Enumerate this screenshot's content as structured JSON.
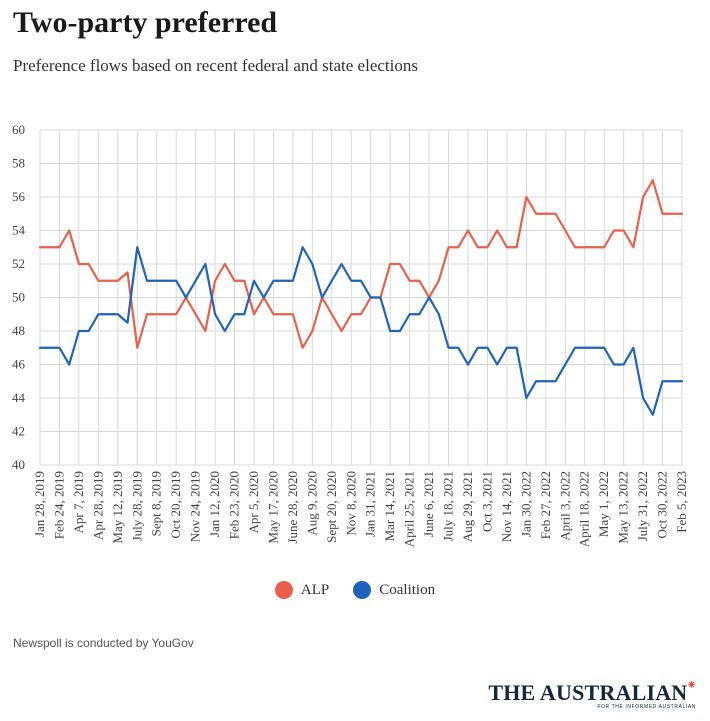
{
  "header": {
    "title": "Two-party preferred",
    "subtitle": "Preference flows based on recent federal and state elections"
  },
  "footnote": "Newspoll is conducted by YouGov",
  "brand": {
    "name": "THE AUSTRALIAN",
    "tagline": "FOR THE INFORMED AUSTRALIAN"
  },
  "chart_data": {
    "type": "line",
    "title": "Two-party preferred",
    "subtitle": "Preference flows based on recent federal and state elections",
    "xlabel": "",
    "ylabel": "",
    "ylim": [
      40,
      60
    ],
    "yticks": [
      40,
      42,
      44,
      46,
      48,
      50,
      52,
      54,
      56,
      58,
      60
    ],
    "grid": true,
    "legend_position": "bottom-center",
    "x_tick_labels": [
      "Jan 28, 2019",
      "Feb 24, 2019",
      "Apr 7, 2019",
      "Apr 28, 2019",
      "May 12, 2019",
      "July 28, 2019",
      "Sept 8, 2019",
      "Oct 20, 2019",
      "Nov 24, 2019",
      "Jan 12, 2020",
      "Feb 23, 2020",
      "Apr 5, 2020",
      "May 17, 2020",
      "June 28, 2020",
      "Aug 9, 2020",
      "Sept 20, 2020",
      "Nov 8, 2020",
      "Jan 31, 2021",
      "Mar 14, 2021",
      "April 25, 2021",
      "June 6, 2021",
      "July 18, 2021",
      "Aug 29, 2021",
      "Oct 3, 2021",
      "Nov 14, 2021",
      "Jan 30, 2022",
      "Feb 27, 2022",
      "April 3, 2022",
      "April 18, 2022",
      "May 1, 2022",
      "May 13, 2022",
      "July 31, 2022",
      "Oct 30, 2022",
      "Feb 5, 2023"
    ],
    "series": [
      {
        "name": "ALP",
        "color": "#e8604c",
        "values": [
          53,
          53,
          53,
          54,
          52,
          52,
          51,
          51,
          51,
          51.5,
          47,
          49,
          49,
          49,
          49,
          50,
          49,
          48,
          51,
          52,
          51,
          51,
          49,
          50,
          49,
          49,
          49,
          47,
          48,
          50,
          49,
          48,
          49,
          49,
          50,
          50,
          52,
          52,
          51,
          51,
          50,
          51,
          53,
          53,
          54,
          53,
          53,
          54,
          53,
          53,
          56,
          55,
          55,
          55,
          54,
          53,
          53,
          53,
          53,
          54,
          54,
          53,
          56,
          57,
          55,
          55,
          55
        ]
      },
      {
        "name": "Coalition",
        "color": "#1f63b8",
        "values": [
          47,
          47,
          47,
          46,
          48,
          48,
          49,
          49,
          49,
          48.5,
          53,
          51,
          51,
          51,
          51,
          50,
          51,
          52,
          49,
          48,
          49,
          49,
          51,
          50,
          51,
          51,
          51,
          53,
          52,
          50,
          51,
          52,
          51,
          51,
          50,
          50,
          48,
          48,
          49,
          49,
          50,
          49,
          47,
          47,
          46,
          47,
          47,
          46,
          47,
          47,
          44,
          45,
          45,
          45,
          46,
          47,
          47,
          47,
          47,
          46,
          46,
          47,
          44,
          43,
          45,
          45,
          45
        ]
      }
    ]
  }
}
